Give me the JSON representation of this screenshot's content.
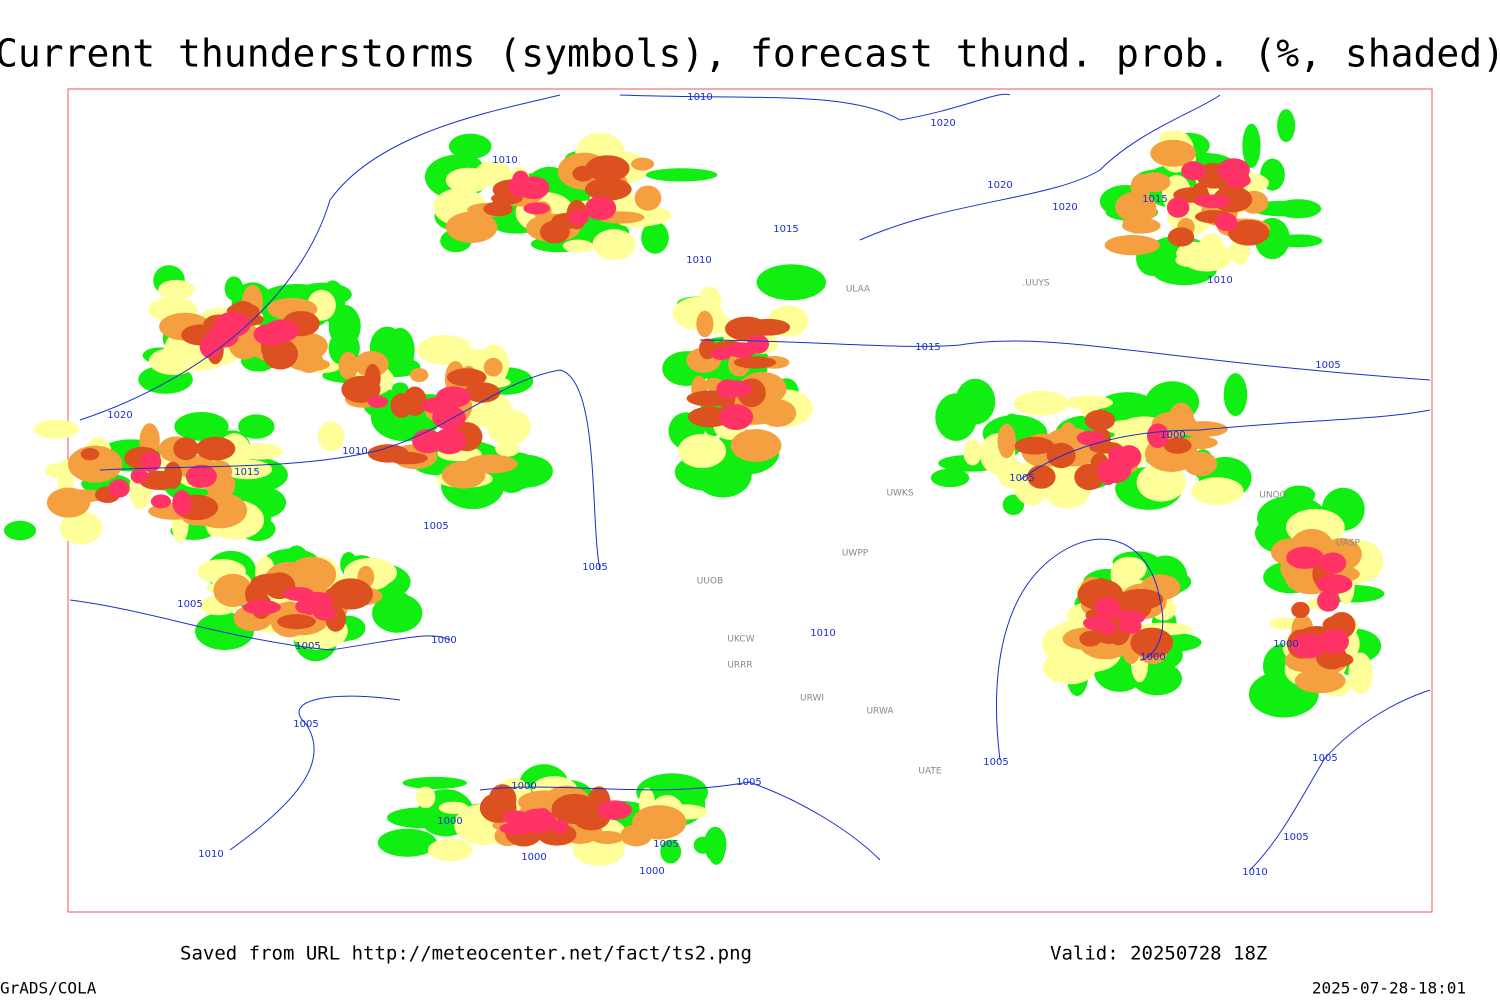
{
  "title": "Current thunderstorms (symbols), forecast thund. prob. (%, shaded)",
  "footer": {
    "source": "Saved from URL http://meteocenter.net/fact/ts2.png",
    "valid": "Valid: 20250728 18Z",
    "credit": "GrADS/COLA",
    "timestamp": "2025-07-28-18:01"
  },
  "isobar_labels": [
    "1010",
    "1020",
    "1010",
    "1020",
    "1020",
    "1015",
    "1015",
    "1010",
    "1010",
    "1015",
    "1005",
    "1020",
    "1000",
    "1010",
    "1015",
    "1005",
    "1005",
    "1005",
    "1005",
    "1010",
    "1000",
    "1005",
    "1000",
    "1000",
    "1005",
    "1005",
    "1005",
    "1005",
    "1000",
    "1000",
    "1005",
    "1005",
    "1000",
    "1000",
    "1010",
    "1010"
  ],
  "station_labels": [
    "ULAA",
    ".UUYS",
    "UWPP",
    "UWKS",
    "UASP",
    "UUOB",
    "UKCW",
    "URRR",
    "URWI",
    "URWA",
    "UATE",
    "UNOO"
  ]
}
